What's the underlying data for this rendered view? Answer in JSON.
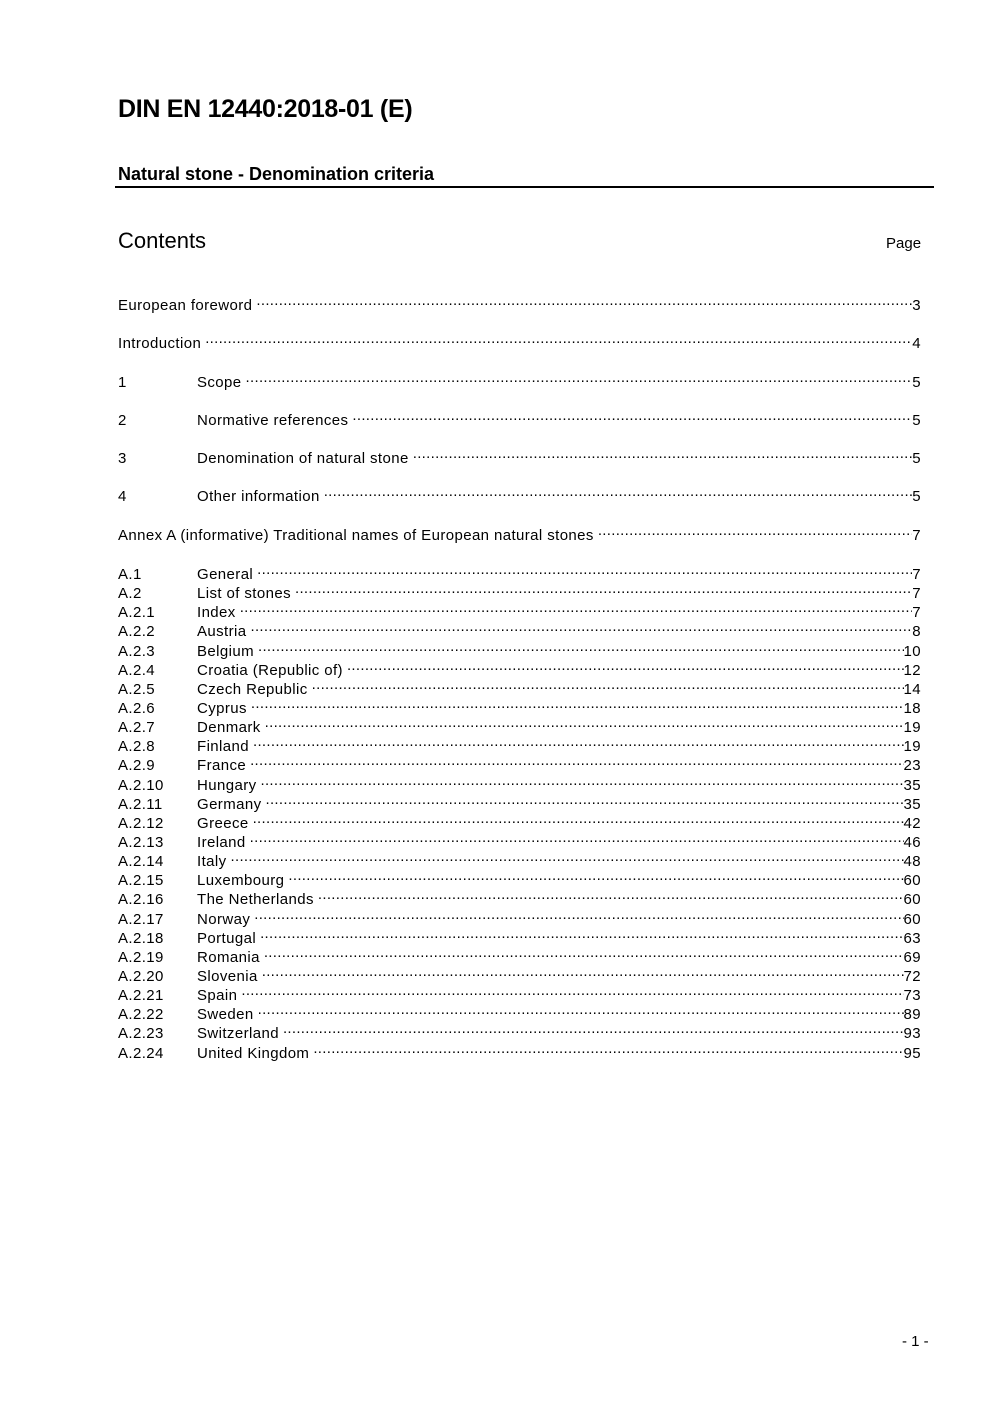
{
  "header": {
    "title": "DIN EN 12440:2018-01 (E)",
    "subtitle": "Natural stone - Denomination criteria"
  },
  "contents": {
    "heading": "Contents",
    "page_label": "Page"
  },
  "toc_main": [
    {
      "num": "",
      "title": "European foreword",
      "page": "3"
    },
    {
      "num": "",
      "title": "Introduction",
      "page": "4"
    },
    {
      "num": "1",
      "title": "Scope",
      "page": "5"
    },
    {
      "num": "2",
      "title": "Normative references",
      "page": "5"
    },
    {
      "num": "3",
      "title": "Denomination of natural stone",
      "page": "5"
    },
    {
      "num": "4",
      "title": "Other information",
      "page": "5"
    },
    {
      "num": "",
      "title": "Annex A (informative) Traditional names of European natural stones",
      "page": "7"
    }
  ],
  "toc_annex": [
    {
      "num": "A.1",
      "title": "General",
      "page": "7"
    },
    {
      "num": "A.2",
      "title": "List of stones",
      "page": "7"
    },
    {
      "num": "A.2.1",
      "title": "Index",
      "page": "7"
    },
    {
      "num": "A.2.2",
      "title": "Austria",
      "page": "8"
    },
    {
      "num": "A.2.3",
      "title": "Belgium",
      "page": "10"
    },
    {
      "num": "A.2.4",
      "title": "Croatia (Republic of)",
      "page": "12"
    },
    {
      "num": "A.2.5",
      "title": "Czech Republic",
      "page": "14"
    },
    {
      "num": "A.2.6",
      "title": "Cyprus",
      "page": "18"
    },
    {
      "num": "A.2.7",
      "title": "Denmark",
      "page": "19"
    },
    {
      "num": "A.2.8",
      "title": "Finland",
      "page": "19"
    },
    {
      "num": "A.2.9",
      "title": "France",
      "page": "23"
    },
    {
      "num": "A.2.10",
      "title": "Hungary",
      "page": "35"
    },
    {
      "num": "A.2.11",
      "title": "Germany",
      "page": "35"
    },
    {
      "num": "A.2.12",
      "title": "Greece",
      "page": "42"
    },
    {
      "num": "A.2.13",
      "title": "Ireland",
      "page": "46"
    },
    {
      "num": "A.2.14",
      "title": "Italy",
      "page": "48"
    },
    {
      "num": "A.2.15",
      "title": "Luxembourg",
      "page": "60"
    },
    {
      "num": "A.2.16",
      "title": "The Netherlands",
      "page": "60"
    },
    {
      "num": "A.2.17",
      "title": "Norway",
      "page": "60"
    },
    {
      "num": "A.2.18",
      "title": "Portugal",
      "page": "63"
    },
    {
      "num": "A.2.19",
      "title": "Romania",
      "page": "69"
    },
    {
      "num": "A.2.20",
      "title": "Slovenia",
      "page": "72"
    },
    {
      "num": "A.2.21",
      "title": "Spain",
      "page": "73"
    },
    {
      "num": "A.2.22",
      "title": "Sweden",
      "page": "89"
    },
    {
      "num": "A.2.23",
      "title": "Switzerland",
      "page": "93"
    },
    {
      "num": "A.2.24",
      "title": "United Kingdom",
      "page": "95"
    }
  ],
  "footer": {
    "page_number": "- 1 -"
  }
}
